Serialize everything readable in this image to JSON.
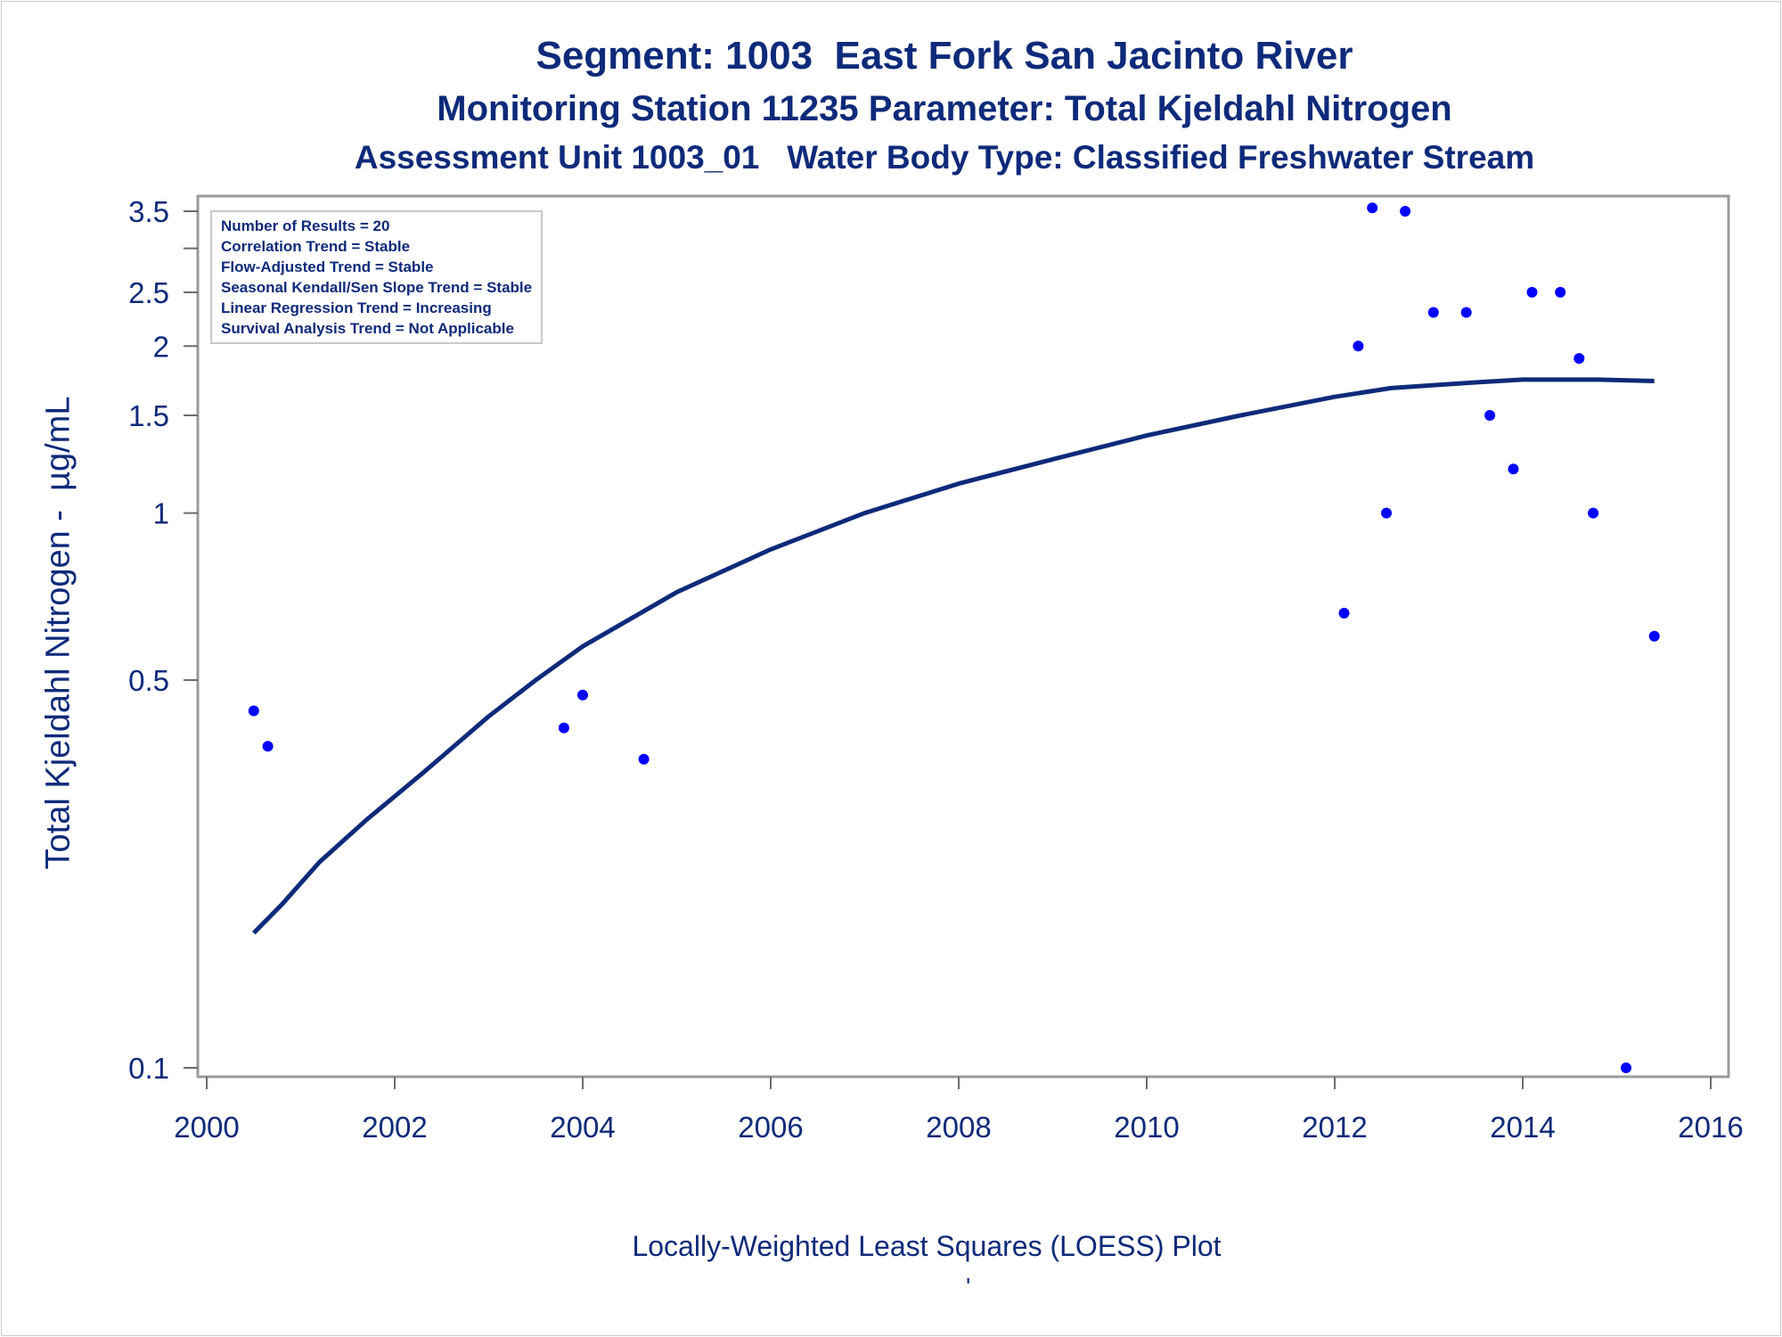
{
  "chart_data": {
    "type": "scatter",
    "title": "Segment: 1003  East Fork San Jacinto River",
    "subtitle": "Monitoring Station 11235 Parameter: Total Kjeldahl Nitrogen",
    "subtitle2": "Assessment Unit 1003_01   Water Body Type: Classified Freshwater Stream",
    "xlabel": "",
    "ylabel": "Total Kjeldahl Nitrogen -  µg/mL",
    "footnote": "Locally-Weighted Least Squares (LOESS) Plot",
    "footnote_mark": "'",
    "xlim": [
      2000,
      2016
    ],
    "ylim": [
      0.1,
      3.5
    ],
    "y_scale": "log",
    "grid": false,
    "legend_position": "top-left",
    "x_ticks": [
      "2000",
      "2002",
      "2004",
      "2006",
      "2008",
      "2010",
      "2012",
      "2014",
      "2016"
    ],
    "y_ticks": [
      "0.1",
      "0.5",
      "1",
      "1.5",
      "2",
      "2.5",
      "3.5"
    ],
    "annotation_lines": [
      "Number of Results = 20",
      "Correlation Trend = Stable",
      "Flow-Adjusted Trend = Stable",
      "Seasonal Kendall/Sen Slope Trend = Stable",
      "Linear Regression Trend = Increasing",
      "Survival Analysis Trend = Not Applicable"
    ],
    "series": [
      {
        "kind": "points",
        "color": "#0000ff",
        "points": [
          {
            "x": 2000.5,
            "y": 0.44
          },
          {
            "x": 2000.65,
            "y": 0.38
          },
          {
            "x": 2003.8,
            "y": 0.41
          },
          {
            "x": 2004.0,
            "y": 0.47
          },
          {
            "x": 2004.65,
            "y": 0.36
          },
          {
            "x": 2012.1,
            "y": 0.66
          },
          {
            "x": 2012.25,
            "y": 2.0
          },
          {
            "x": 2012.4,
            "y": 3.55
          },
          {
            "x": 2012.55,
            "y": 1.0
          },
          {
            "x": 2012.75,
            "y": 3.5
          },
          {
            "x": 2013.05,
            "y": 2.3
          },
          {
            "x": 2013.4,
            "y": 2.3
          },
          {
            "x": 2013.65,
            "y": 1.5
          },
          {
            "x": 2013.9,
            "y": 1.2
          },
          {
            "x": 2014.1,
            "y": 2.5
          },
          {
            "x": 2014.4,
            "y": 2.5
          },
          {
            "x": 2014.6,
            "y": 1.9
          },
          {
            "x": 2014.75,
            "y": 1.0
          },
          {
            "x": 2015.1,
            "y": 0.1
          },
          {
            "x": 2015.4,
            "y": 0.6
          }
        ]
      },
      {
        "kind": "loess-line",
        "color": "#0e2a7a",
        "points": [
          {
            "x": 2000.5,
            "y": 0.175
          },
          {
            "x": 2000.8,
            "y": 0.197
          },
          {
            "x": 2001.2,
            "y": 0.235
          },
          {
            "x": 2001.7,
            "y": 0.28
          },
          {
            "x": 2002.3,
            "y": 0.34
          },
          {
            "x": 2003.0,
            "y": 0.43
          },
          {
            "x": 2003.5,
            "y": 0.5
          },
          {
            "x": 2004.0,
            "y": 0.575
          },
          {
            "x": 2005.0,
            "y": 0.72
          },
          {
            "x": 2006.0,
            "y": 0.86
          },
          {
            "x": 2007.0,
            "y": 1.0
          },
          {
            "x": 2008.0,
            "y": 1.13
          },
          {
            "x": 2009.0,
            "y": 1.25
          },
          {
            "x": 2010.0,
            "y": 1.38
          },
          {
            "x": 2011.0,
            "y": 1.5
          },
          {
            "x": 2012.0,
            "y": 1.62
          },
          {
            "x": 2012.6,
            "y": 1.68
          },
          {
            "x": 2013.5,
            "y": 1.72
          },
          {
            "x": 2014.0,
            "y": 1.74
          },
          {
            "x": 2014.8,
            "y": 1.74
          },
          {
            "x": 2015.4,
            "y": 1.73
          }
        ]
      }
    ]
  }
}
